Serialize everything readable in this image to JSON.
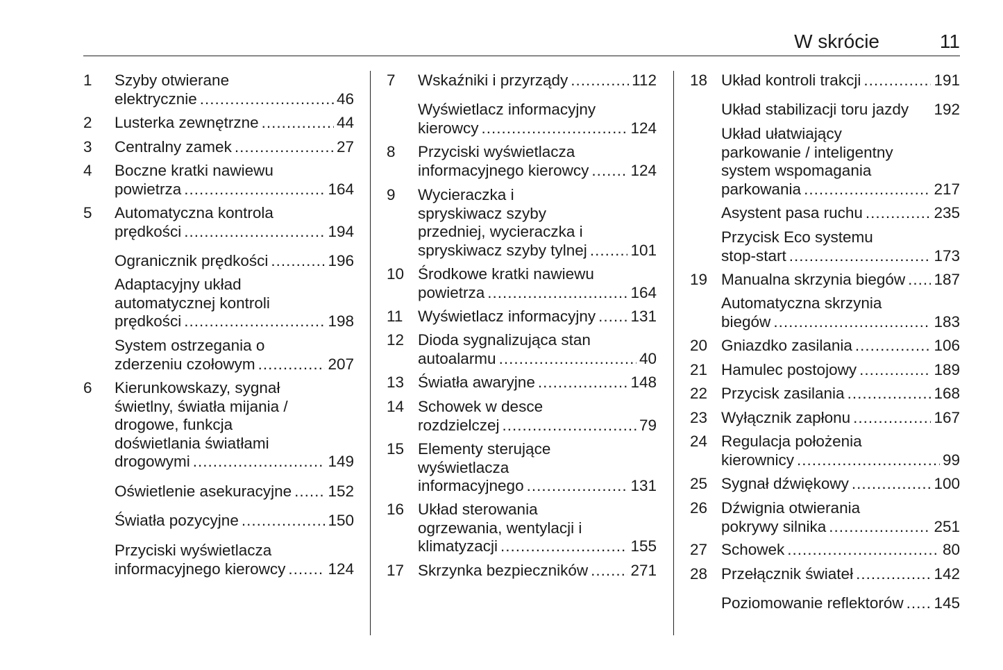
{
  "header": {
    "title": "W skrócie",
    "page_number": "11"
  },
  "columns": [
    [
      {
        "num": "1",
        "lines": [
          "Szyby otwierane"
        ],
        "last": "elektrycznie",
        "page": "46"
      },
      {
        "num": "2",
        "lines": [],
        "last": "Lusterka zewnętrzne",
        "page": "44"
      },
      {
        "num": "3",
        "lines": [],
        "last": "Centralny zamek",
        "page": "27"
      },
      {
        "num": "4",
        "lines": [
          "Boczne kratki nawiewu"
        ],
        "last": "powietrza",
        "page": "164"
      },
      {
        "num": "5",
        "lines": [
          "Automatyczna kontrola"
        ],
        "last": "prędkości",
        "page": "194"
      },
      {
        "num": "",
        "lines": [],
        "last": "Ogranicznik prędkości",
        "page": "196"
      },
      {
        "num": "",
        "lines": [
          "Adaptacyjny układ",
          "automatycznej kontroli"
        ],
        "last": "prędkości",
        "page": "198"
      },
      {
        "num": "",
        "lines": [
          "System ostrzegania o"
        ],
        "last": "zderzeniu czołowym",
        "page": "207"
      },
      {
        "num": "6",
        "lines": [
          "Kierunkowskazy, sygnał",
          "świetlny, światła mijania /",
          "drogowe, funkcja",
          "doświetlania światłami"
        ],
        "last": "drogowymi",
        "page": "149"
      },
      {
        "num": "",
        "lines": [],
        "last": "Oświetlenie asekuracyjne",
        "page": "152"
      },
      {
        "num": "",
        "lines": [],
        "last": "Światła pozycyjne",
        "page": "150"
      },
      {
        "num": "",
        "lines": [
          "Przyciski wyświetlacza"
        ],
        "last": "informacyjnego kierowcy",
        "page": "124"
      }
    ],
    [
      {
        "num": "7",
        "lines": [],
        "last": "Wskaźniki i przyrządy",
        "page": "112"
      },
      {
        "num": "",
        "lines": [
          "Wyświetlacz informacyjny"
        ],
        "last": "kierowcy",
        "page": "124"
      },
      {
        "num": "8",
        "lines": [
          "Przyciski wyświetlacza"
        ],
        "last": "informacyjnego kierowcy",
        "page": "124"
      },
      {
        "num": "9",
        "lines": [
          "Wycieraczka i",
          "spryskiwacz szyby",
          "przedniej, wycieraczka i"
        ],
        "last": "spryskiwacz szyby tylnej",
        "page": "101"
      },
      {
        "num": "10",
        "lines": [
          "Środkowe kratki nawiewu"
        ],
        "last": "powietrza",
        "page": "164"
      },
      {
        "num": "11",
        "lines": [],
        "last": "Wyświetlacz informacyjny",
        "page": "131"
      },
      {
        "num": "12",
        "lines": [
          "Dioda sygnalizująca stan"
        ],
        "last": "autoalarmu",
        "page": "40"
      },
      {
        "num": "13",
        "lines": [],
        "last": "Światła awaryjne",
        "page": "148"
      },
      {
        "num": "14",
        "lines": [
          "Schowek w desce"
        ],
        "last": "rozdzielczej",
        "page": "79"
      },
      {
        "num": "15",
        "lines": [
          "Elementy sterujące",
          "wyświetlacza"
        ],
        "last": "informacyjnego",
        "page": "131"
      },
      {
        "num": "16",
        "lines": [
          "Układ sterowania",
          "ogrzewania, wentylacji i"
        ],
        "last": "klimatyzacji",
        "page": "155"
      },
      {
        "num": "17",
        "lines": [],
        "last": "Skrzynka bezpieczników",
        "page": "271"
      }
    ],
    [
      {
        "num": "18",
        "lines": [],
        "last": "Układ kontroli trakcji",
        "page": "191"
      },
      {
        "num": "",
        "lines": [],
        "last": "Układ stabilizacji toru jazdy",
        "page": "192"
      },
      {
        "num": "",
        "lines": [
          "Układ ułatwiający",
          "parkowanie / inteligentny",
          "system wspomagania"
        ],
        "last": "parkowania",
        "page": "217"
      },
      {
        "num": "",
        "lines": [],
        "last": "Asystent pasa ruchu",
        "page": "235"
      },
      {
        "num": "",
        "lines": [
          "Przycisk Eco systemu"
        ],
        "last": "stop-start",
        "page": "173"
      },
      {
        "num": "19",
        "lines": [],
        "last": "Manualna skrzynia biegów",
        "page": "187"
      },
      {
        "num": "",
        "lines": [
          "Automatyczna skrzynia"
        ],
        "last": "biegów",
        "page": "183"
      },
      {
        "num": "20",
        "lines": [],
        "last": "Gniazdko zasilania",
        "page": "106"
      },
      {
        "num": "21",
        "lines": [],
        "last": "Hamulec postojowy",
        "page": "189"
      },
      {
        "num": "22",
        "lines": [],
        "last": "Przycisk zasilania",
        "page": "168"
      },
      {
        "num": "23",
        "lines": [],
        "last": "Wyłącznik zapłonu",
        "page": "167"
      },
      {
        "num": "24",
        "lines": [
          "Regulacja położenia"
        ],
        "last": "kierownicy",
        "page": "99"
      },
      {
        "num": "25",
        "lines": [],
        "last": "Sygnał dźwiękowy",
        "page": "100"
      },
      {
        "num": "26",
        "lines": [
          "Dźwignia otwierania"
        ],
        "last": "pokrywy silnika",
        "page": "251"
      },
      {
        "num": "27",
        "lines": [],
        "last": "Schowek",
        "page": "80"
      },
      {
        "num": "28",
        "lines": [],
        "last": "Przełącznik świateł",
        "page": "142"
      },
      {
        "num": "",
        "lines": [],
        "last": "Poziomowanie reflektorów",
        "page": "145"
      }
    ]
  ]
}
